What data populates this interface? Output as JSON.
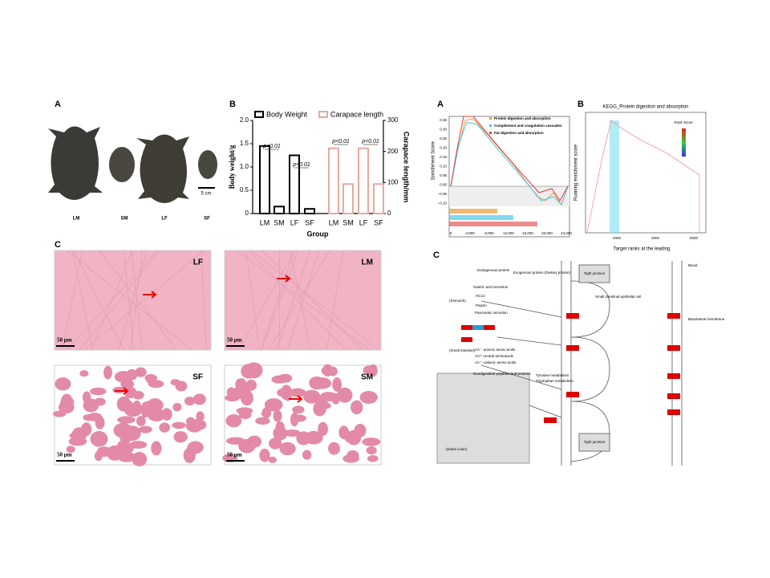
{
  "left": {
    "A": {
      "label": "A",
      "specimens": [
        "LM",
        "SM",
        "LF",
        "SF"
      ],
      "scale_bar": "5 cm"
    },
    "B": {
      "label": "B",
      "chart": {
        "type": "bar",
        "categories": [
          "LM",
          "SM",
          "LF",
          "SF"
        ],
        "series": [
          {
            "name": "Body Weight",
            "color": "#000000",
            "values": [
              1.45,
              0.15,
              1.25,
              0.1
            ]
          },
          {
            "name": "Carapace length",
            "color": "#e6a9a0",
            "axis": "y2",
            "values": [
              210,
              95,
              210,
              95
            ]
          }
        ],
        "ylim": [
          0,
          2
        ],
        "yticks": [
          0,
          0.5,
          {
            "value": 1,
            "label": "1.0"
          },
          1.5,
          {
            "value": 2,
            "label": "2.0"
          }
        ],
        "y2lim": [
          0,
          300
        ],
        "y2ticks": [
          0,
          100,
          200,
          300
        ],
        "ylabel": "Body weight/g",
        "y2label": "Carapace length/mm",
        "xlabel": "Group",
        "annotations": [
          "p<0.01",
          "p<0.01",
          "p<0.01",
          "p<0.01"
        ]
      }
    },
    "C": {
      "label": "C",
      "images": [
        {
          "tag": "LF",
          "scale": "50 μm"
        },
        {
          "tag": "LM",
          "scale": "50 μm"
        },
        {
          "tag": "SF",
          "scale": "50 μm"
        },
        {
          "tag": "SM",
          "scale": "50 μm"
        }
      ]
    }
  },
  "right": {
    "A": {
      "label": "A",
      "ylabel": "Enrichment Score",
      "legend": [
        "Protein digestion and absorption",
        "Complement and coagulation cascades",
        "Fat digestion and absorption"
      ],
      "yticks": [
        "0.35",
        "0.30",
        "0.25",
        "0.20",
        "0.15",
        "0.10",
        "0.05",
        "0.00",
        "−0.05",
        "−0.10"
      ],
      "xticks": [
        "0",
        "4,000",
        "8,000",
        "12,000",
        "16,000",
        "20,000",
        "24,000"
      ]
    },
    "B": {
      "label": "B",
      "title": "KEGG_Protein digestion and absorption",
      "ylabel": "Running enrichment score",
      "xlabel": "Target ranks at the leading",
      "xticks": [
        "2000",
        "4000",
        "6000"
      ],
      "legend_title": "Rank Score"
    },
    "C": {
      "label": "C",
      "texts": [
        "Blood",
        "Tight junction",
        "Tight junction",
        "Basolateral membrane",
        "(Stomach)",
        "(Small intestine)",
        "(Distal colon)",
        "Gastric acid secretion",
        "Pancreatic secretion",
        "HC1C",
        "Pepsin",
        "Small intestinal epithelial cell",
        "Endogenous protein",
        "Exogenous protein (Dietary protein)",
        "AA⁻: anionic amino acids",
        "AA⁰: neutral aminoacids",
        "AA⁺: cationic amino acids",
        "Nondigestible peptides and proteins",
        "Tyrosine metabolism",
        "Tryptophan metabolism"
      ]
    }
  }
}
